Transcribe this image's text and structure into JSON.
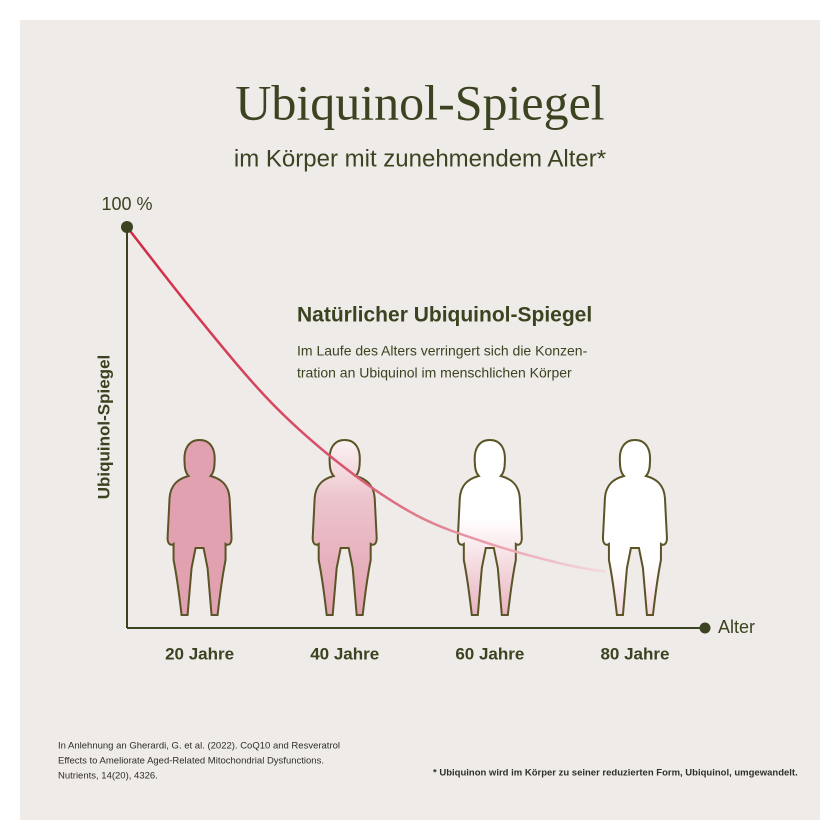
{
  "chart_data": {
    "type": "line",
    "title": "Ubiquinol-Spiegel",
    "subtitle": "im Körper mit zunehmendem Alter*",
    "y_label": "Ubiquinol-Spiegel",
    "x_label": "Alter",
    "xlim": [
      10,
      90
    ],
    "ylim": [
      0,
      100
    ],
    "xticks": [
      {
        "value": 20,
        "label": "20 Jahre"
      },
      {
        "value": 40,
        "label": "40 Jahre"
      },
      {
        "value": 60,
        "label": "60 Jahre"
      },
      {
        "value": 80,
        "label": "80 Jahre"
      }
    ],
    "yticks": [
      {
        "value": 100,
        "label": "100 %"
      }
    ],
    "series": [
      {
        "color": "#d12a45",
        "x": [
          10,
          20,
          30,
          40,
          50,
          60,
          70,
          76
        ],
        "values": [
          100,
          77,
          56,
          40,
          28,
          21,
          16,
          14
        ]
      }
    ],
    "annotation": {
      "title": "Natürlicher Ubiquinol-Spiegel",
      "lines": [
        "Im Laufe des Alters verringert sich die Konzen-",
        "tration an Ubiquinol im menschlichen Körper"
      ]
    },
    "source": [
      "In Anlehnung an Gherardi, G. et al. (2022). CoQ10 and Resveratrol",
      "Effects to Ameliorate Aged-Related Mitochondrial Dysfunctions.",
      "Nutrients, 14(20), 4326."
    ],
    "footnote": "* Ubiquinon wird im Körper zu seiner reduzierten Form, Ubiquinol, umgewandelt."
  }
}
